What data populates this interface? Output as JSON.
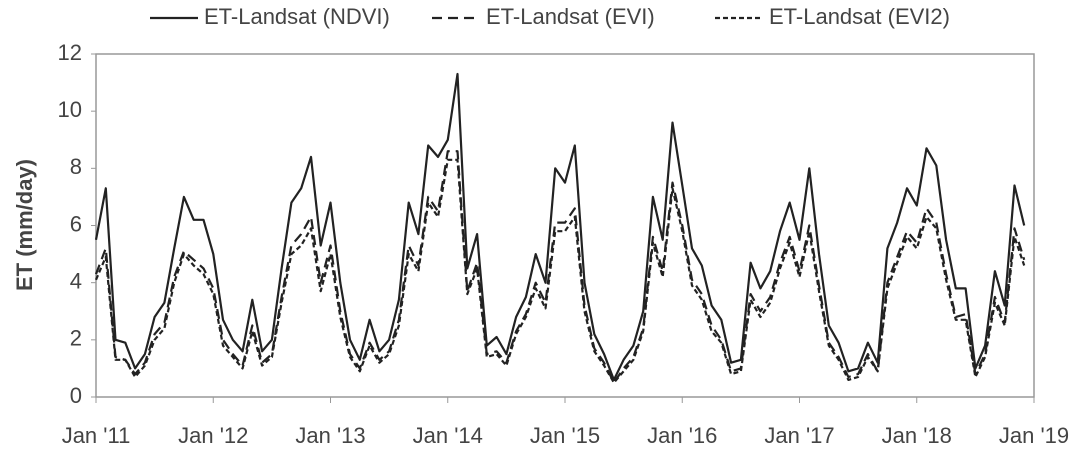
{
  "chart_data": {
    "type": "line",
    "y_label": "ET (mm/day)",
    "x": [
      "2011-01",
      "2011-02",
      "2011-03",
      "2011-04",
      "2011-05",
      "2011-06",
      "2011-07",
      "2011-08",
      "2011-09",
      "2011-10",
      "2011-11",
      "2011-12",
      "2012-01",
      "2012-02",
      "2012-03",
      "2012-04",
      "2012-05",
      "2012-06",
      "2012-07",
      "2012-08",
      "2012-09",
      "2012-10",
      "2012-11",
      "2012-12",
      "2013-01",
      "2013-02",
      "2013-03",
      "2013-04",
      "2013-05",
      "2013-06",
      "2013-07",
      "2013-08",
      "2013-09",
      "2013-10",
      "2013-11",
      "2013-12",
      "2014-01",
      "2014-02",
      "2014-03",
      "2014-04",
      "2014-05",
      "2014-06",
      "2014-07",
      "2014-08",
      "2014-09",
      "2014-10",
      "2014-11",
      "2014-12",
      "2015-01",
      "2015-02",
      "2015-03",
      "2015-04",
      "2015-05",
      "2015-06",
      "2015-07",
      "2015-08",
      "2015-09",
      "2015-10",
      "2015-11",
      "2015-12",
      "2016-01",
      "2016-02",
      "2016-03",
      "2016-04",
      "2016-05",
      "2016-06",
      "2016-07",
      "2016-08",
      "2016-09",
      "2016-10",
      "2016-11",
      "2016-12",
      "2017-01",
      "2017-02",
      "2017-03",
      "2017-04",
      "2017-05",
      "2017-06",
      "2017-07",
      "2017-08",
      "2017-09",
      "2017-10",
      "2017-11",
      "2017-12",
      "2018-01",
      "2018-02",
      "2018-03",
      "2018-04",
      "2018-05",
      "2018-06",
      "2018-07",
      "2018-08",
      "2018-09",
      "2018-10",
      "2018-11",
      "2018-12"
    ],
    "series": [
      {
        "name": "ET-Landsat (NDVI)",
        "color": "#222222",
        "dash": "none",
        "values": [
          5.5,
          7.3,
          2.0,
          1.9,
          1.0,
          1.5,
          2.8,
          3.3,
          5.2,
          7.0,
          6.2,
          6.2,
          5.0,
          2.7,
          2.0,
          1.6,
          3.4,
          1.6,
          2.0,
          4.5,
          6.8,
          7.3,
          8.4,
          5.3,
          6.8,
          4.0,
          2.0,
          1.3,
          2.7,
          1.6,
          2.0,
          3.4,
          6.8,
          5.7,
          8.8,
          8.4,
          9.0,
          11.3,
          4.5,
          5.7,
          1.8,
          2.1,
          1.5,
          2.8,
          3.5,
          5.0,
          4.0,
          8.0,
          7.5,
          8.8,
          4.0,
          2.2,
          1.5,
          0.6,
          1.3,
          1.8,
          3.0,
          7.0,
          5.5,
          9.6,
          7.4,
          5.2,
          4.6,
          3.2,
          2.7,
          1.2,
          1.3,
          4.7,
          3.8,
          4.4,
          5.8,
          6.8,
          5.5,
          8.0,
          5.0,
          2.5,
          1.9,
          0.9,
          1.0,
          1.9,
          1.2,
          5.2,
          6.1,
          7.3,
          6.7,
          8.7,
          8.1,
          5.5,
          3.8,
          3.8,
          1.0,
          1.8,
          4.4,
          3.2,
          7.4,
          6.0
        ]
      },
      {
        "name": "ET-Landsat (EVI)",
        "color": "#222222",
        "dash": "10,6",
        "values": [
          4.3,
          5.2,
          1.4,
          1.3,
          0.8,
          1.2,
          2.2,
          2.6,
          4.2,
          5.1,
          4.8,
          4.5,
          3.8,
          2.0,
          1.5,
          1.1,
          2.5,
          1.2,
          1.5,
          3.5,
          5.3,
          5.7,
          6.3,
          4.0,
          5.3,
          3.0,
          1.5,
          1.0,
          1.9,
          1.3,
          1.6,
          2.7,
          5.3,
          4.6,
          7.0,
          6.5,
          8.6,
          8.6,
          3.7,
          4.7,
          1.5,
          1.6,
          1.2,
          2.3,
          2.9,
          4.0,
          3.3,
          6.1,
          6.1,
          6.6,
          3.2,
          1.7,
          1.2,
          0.5,
          1.0,
          1.4,
          2.4,
          5.6,
          4.4,
          7.5,
          6.0,
          4.1,
          3.6,
          2.5,
          2.0,
          0.9,
          1.0,
          3.6,
          3.0,
          3.5,
          4.7,
          5.6,
          4.4,
          6.0,
          3.9,
          1.9,
          1.4,
          0.7,
          0.8,
          1.5,
          0.9,
          4.0,
          4.9,
          5.8,
          5.4,
          6.6,
          6.1,
          4.3,
          2.8,
          2.9,
          0.8,
          1.5,
          3.5,
          2.6,
          5.9,
          4.8
        ]
      },
      {
        "name": "ET-Landsat (EVI2)",
        "color": "#222222",
        "dash": "5,3",
        "values": [
          4.1,
          4.9,
          1.3,
          1.3,
          0.7,
          1.1,
          2.0,
          2.4,
          4.0,
          5.0,
          4.6,
          4.3,
          3.6,
          1.8,
          1.4,
          1.0,
          2.3,
          1.1,
          1.4,
          3.3,
          5.0,
          5.3,
          5.9,
          3.7,
          5.0,
          2.8,
          1.4,
          0.9,
          1.8,
          1.2,
          1.5,
          2.5,
          5.0,
          4.4,
          6.8,
          6.3,
          8.3,
          8.3,
          3.6,
          4.5,
          1.4,
          1.5,
          1.1,
          2.2,
          2.8,
          3.8,
          3.1,
          5.8,
          5.8,
          6.3,
          3.0,
          1.6,
          1.1,
          0.5,
          0.9,
          1.3,
          2.3,
          5.4,
          4.2,
          7.3,
          5.8,
          3.9,
          3.4,
          2.3,
          1.9,
          0.8,
          0.9,
          3.4,
          2.8,
          3.3,
          4.5,
          5.4,
          4.2,
          5.8,
          3.7,
          1.8,
          1.3,
          0.6,
          0.7,
          1.4,
          0.9,
          3.8,
          4.7,
          5.6,
          5.2,
          6.3,
          5.9,
          4.1,
          2.7,
          2.7,
          0.7,
          1.4,
          3.3,
          2.5,
          5.6,
          4.6
        ]
      }
    ],
    "xlim": [
      "2011-01",
      "2019-01"
    ],
    "xticks": [
      {
        "value": "2011-01",
        "label": "Jan '11"
      },
      {
        "value": "2012-01",
        "label": "Jan '12"
      },
      {
        "value": "2013-01",
        "label": "Jan '13"
      },
      {
        "value": "2014-01",
        "label": "Jan '14"
      },
      {
        "value": "2015-01",
        "label": "Jan '15"
      },
      {
        "value": "2016-01",
        "label": "Jan '16"
      },
      {
        "value": "2017-01",
        "label": "Jan '17"
      },
      {
        "value": "2018-01",
        "label": "Jan '18"
      },
      {
        "value": "2019-01",
        "label": "Jan '19"
      }
    ],
    "ylim": [
      0,
      12
    ],
    "yticks": [
      0,
      2,
      4,
      6,
      8,
      10,
      12
    ],
    "grid": false,
    "legend": "top"
  }
}
